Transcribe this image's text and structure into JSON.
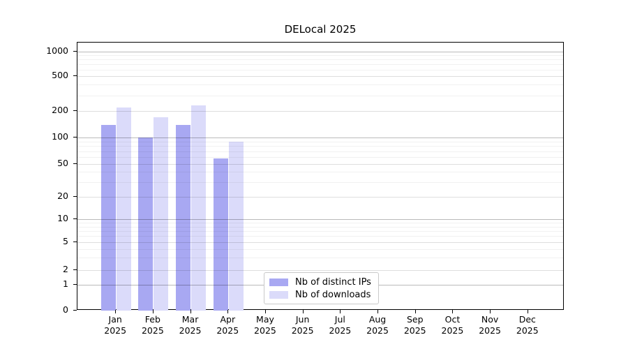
{
  "chart_data": {
    "type": "bar",
    "title": "DELocal 2025",
    "categories": [
      "Jan 2025",
      "Feb 2025",
      "Mar 2025",
      "Apr 2025",
      "May 2025",
      "Jun 2025",
      "Jul 2025",
      "Aug 2025",
      "Sep 2025",
      "Oct 2025",
      "Nov 2025",
      "Dec 2025"
    ],
    "series": [
      {
        "name": "Nb of distinct IPs",
        "color": "#a8a8f2",
        "values": [
          140,
          100,
          140,
          58,
          0,
          0,
          0,
          0,
          0,
          0,
          0,
          0
        ]
      },
      {
        "name": "Nb of downloads",
        "color": "#dbdbfa",
        "values": [
          220,
          170,
          230,
          90,
          0,
          0,
          0,
          0,
          0,
          0,
          0,
          0
        ]
      }
    ],
    "yticks": [
      0,
      1,
      2,
      5,
      10,
      20,
      50,
      100,
      200,
      500,
      1000
    ],
    "ylim": [
      0,
      1000
    ],
    "yscale": "symlog",
    "grid": true,
    "legend_position": "lower center",
    "xlabel": "",
    "ylabel": ""
  }
}
